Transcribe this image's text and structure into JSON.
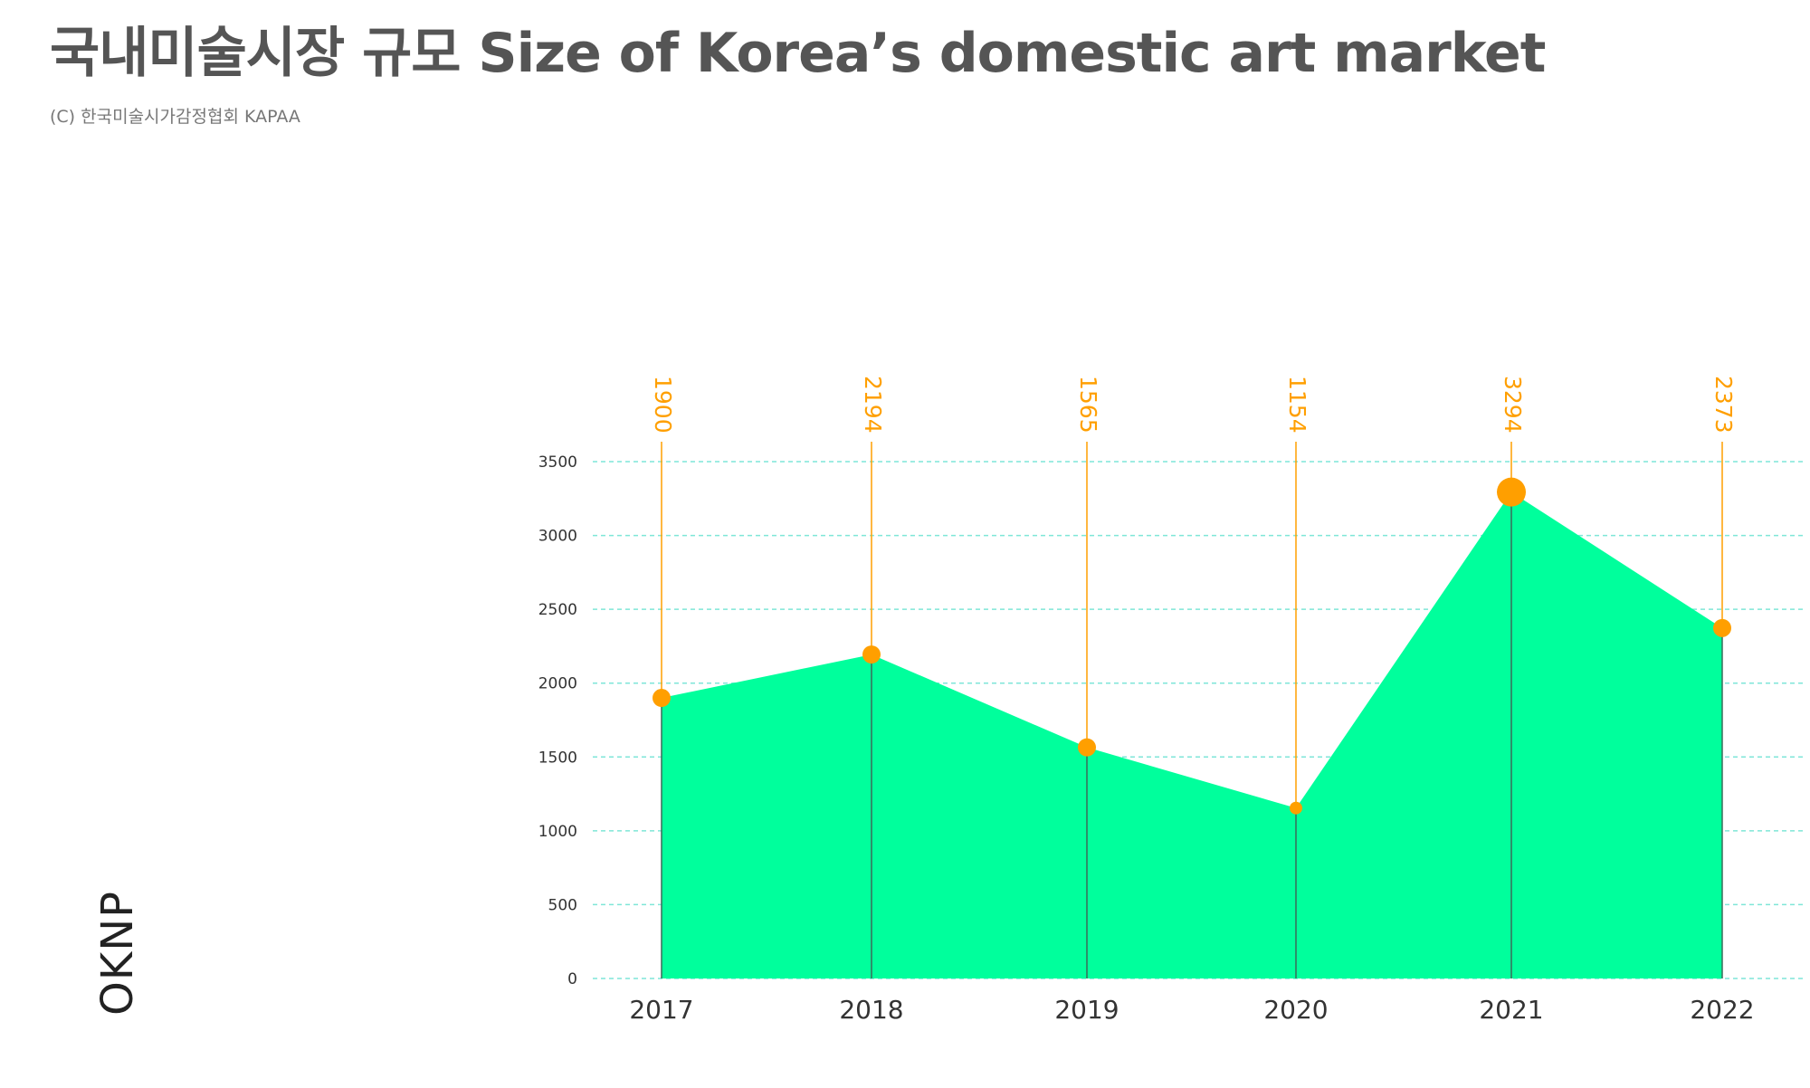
{
  "title": "국내미술시장 규모 Size of Korea’s domestic art market",
  "subtitle": "(C) 한국미술시가감정협회   KAPAA",
  "brand": "OKNP",
  "colors": {
    "area": "#00FF9C",
    "marker": "#FF9F00",
    "label": "#FF9F00",
    "grid": "#7FE6D8",
    "title": "#555555"
  },
  "chart_data": {
    "type": "area",
    "categories": [
      "2017",
      "2018",
      "2019",
      "2020",
      "2021",
      "2022"
    ],
    "values": [
      1900,
      2194,
      1565,
      1154,
      3294,
      2373
    ],
    "data_labels": [
      "1900",
      "2194",
      "1565",
      "1154",
      "3294",
      "2373"
    ],
    "yticks": [
      "0",
      "500",
      "1000",
      "1500",
      "2000",
      "2500",
      "3000",
      "3500"
    ],
    "ylim": [
      0,
      3500
    ],
    "grid": true,
    "xlabel": "",
    "ylabel": ""
  }
}
